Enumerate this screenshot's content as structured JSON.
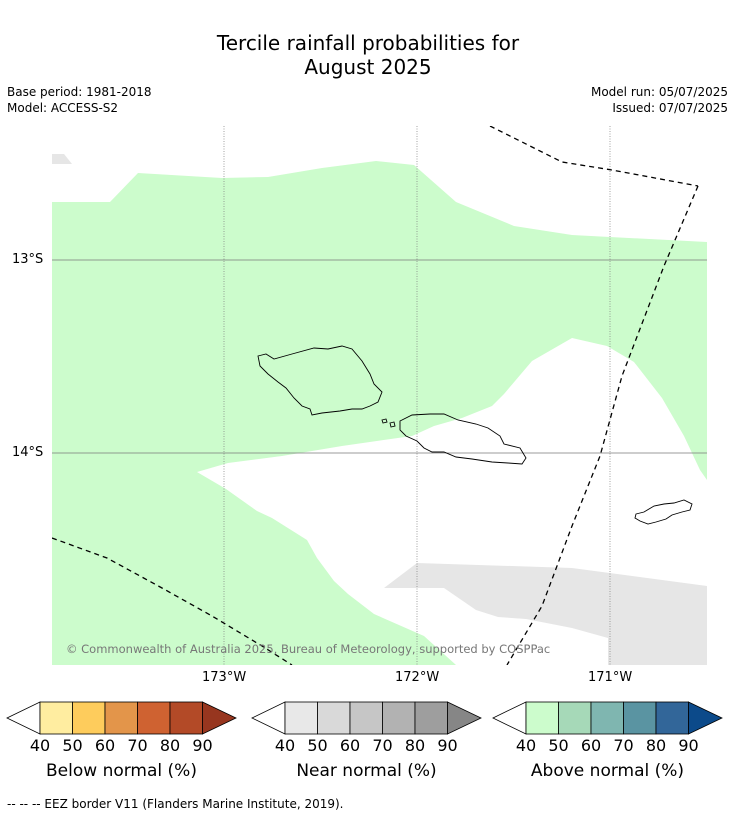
{
  "header": {
    "title_line1": "Tercile rainfall probabilities for",
    "title_line2": "August 2025",
    "base_period": "Base period: 1981-2018",
    "model": "Model: ACCESS-S2",
    "model_run": "Model run: 05/07/2025",
    "issued": "Issued: 07/07/2025"
  },
  "map": {
    "lat_labels": [
      "13°S",
      "14°S"
    ],
    "lon_labels": [
      "173°W",
      "172°W",
      "171°W"
    ],
    "copyright": "© Commonwealth of Australia 2025, Bureau of Meteorology, supported by COSPPac",
    "fill_colors": {
      "above_40_50": "#ccfccc",
      "near_40_50": "#e6e6e6"
    }
  },
  "colorbars": [
    {
      "label": "Below normal (%)",
      "ticks": [
        "40",
        "50",
        "60",
        "70",
        "80",
        "90"
      ],
      "colors": [
        "#ffeda0",
        "#fecc5c",
        "#e3954a",
        "#cf6231",
        "#b34a27",
        "#97361f"
      ]
    },
    {
      "label": "Near normal (%)",
      "ticks": [
        "40",
        "50",
        "60",
        "70",
        "80",
        "90"
      ],
      "colors": [
        "#e8e8e8",
        "#d9d9d9",
        "#c6c6c6",
        "#b2b2b2",
        "#9e9e9e",
        "#868686"
      ]
    },
    {
      "label": "Above normal (%)",
      "ticks": [
        "40",
        "50",
        "60",
        "70",
        "80",
        "90"
      ],
      "colors": [
        "#ccfccc",
        "#a6d9b8",
        "#7fb6b0",
        "#5a94a2",
        "#326699",
        "#0c4a8a"
      ]
    }
  ],
  "footnote": "-- -- -- EEZ border V11 (Flanders Marine Institute, 2019)."
}
